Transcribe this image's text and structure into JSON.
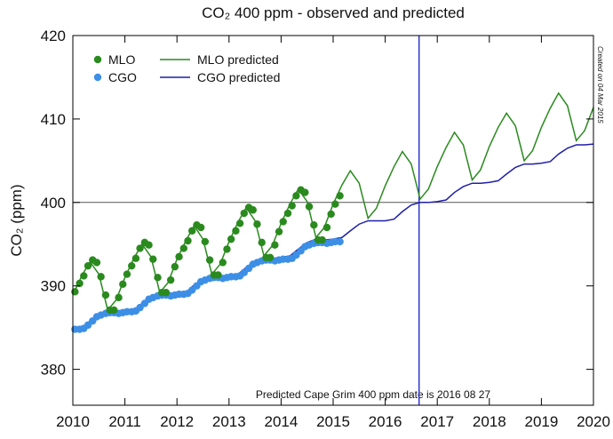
{
  "chart_data": {
    "type": "line",
    "title": "CO₂ 400 ppm - observed and predicted",
    "y_label": "CO₂ (ppm)",
    "annotation": "Predicted Cape Grim 400 ppm date is 2016 08 27",
    "side_note": "Created on 04 Mar 2015",
    "xlim": [
      2010,
      2020
    ],
    "xticks": [
      2010,
      2011,
      2012,
      2013,
      2014,
      2015,
      2016,
      2017,
      2018,
      2019,
      2020
    ],
    "ylim": [
      375.7,
      420
    ],
    "yticks": [
      380,
      390,
      400,
      410,
      420
    ],
    "hline_y": 400,
    "vline_x": 2016.65,
    "series": [
      {
        "name": "MLO",
        "color": "#2a8a1e",
        "style": "markers",
        "x": [
          2010.04,
          2010.13,
          2010.21,
          2010.29,
          2010.38,
          2010.46,
          2010.54,
          2010.63,
          2010.71,
          2010.79,
          2010.88,
          2010.96,
          2011.04,
          2011.13,
          2011.21,
          2011.29,
          2011.38,
          2011.46,
          2011.54,
          2011.63,
          2011.71,
          2011.79,
          2011.88,
          2011.96,
          2012.04,
          2012.13,
          2012.21,
          2012.29,
          2012.38,
          2012.46,
          2012.54,
          2012.63,
          2012.71,
          2012.79,
          2012.88,
          2012.96,
          2013.04,
          2013.13,
          2013.21,
          2013.29,
          2013.38,
          2013.46,
          2013.54,
          2013.63,
          2013.71,
          2013.79,
          2013.88,
          2013.96,
          2014.04,
          2014.13,
          2014.21,
          2014.29,
          2014.38,
          2014.46,
          2014.54,
          2014.63,
          2014.71,
          2014.79,
          2014.88,
          2014.96,
          2015.04,
          2015.13
        ],
        "values": [
          389.3,
          390.3,
          391.2,
          392.4,
          393.1,
          392.8,
          391.1,
          388.9,
          387.1,
          387.1,
          388.6,
          390.2,
          391.4,
          392.4,
          393.3,
          394.5,
          395.2,
          394.9,
          393.2,
          391.0,
          389.2,
          389.2,
          390.7,
          392.3,
          393.5,
          394.5,
          395.4,
          396.6,
          397.3,
          397.0,
          395.3,
          393.1,
          391.3,
          391.3,
          392.8,
          394.4,
          395.6,
          396.6,
          397.5,
          398.7,
          399.4,
          399.1,
          397.4,
          395.2,
          393.4,
          393.4,
          394.9,
          396.5,
          397.7,
          398.7,
          399.6,
          400.8,
          401.5,
          401.2,
          399.5,
          397.3,
          395.5,
          395.5,
          397.0,
          398.6,
          399.8,
          400.8
        ]
      },
      {
        "name": "CGO",
        "color": "#3d8fe6",
        "style": "markers",
        "x": [
          2010.04,
          2010.13,
          2010.21,
          2010.29,
          2010.38,
          2010.46,
          2010.54,
          2010.63,
          2010.71,
          2010.79,
          2010.88,
          2010.96,
          2011.04,
          2011.13,
          2011.21,
          2011.29,
          2011.38,
          2011.46,
          2011.54,
          2011.63,
          2011.71,
          2011.79,
          2011.88,
          2011.96,
          2012.04,
          2012.13,
          2012.21,
          2012.29,
          2012.38,
          2012.46,
          2012.54,
          2012.63,
          2012.71,
          2012.79,
          2012.88,
          2012.96,
          2013.04,
          2013.13,
          2013.21,
          2013.29,
          2013.38,
          2013.46,
          2013.54,
          2013.63,
          2013.71,
          2013.79,
          2013.88,
          2013.96,
          2014.04,
          2014.13,
          2014.21,
          2014.29,
          2014.38,
          2014.46,
          2014.54,
          2014.63,
          2014.71,
          2014.79,
          2014.88,
          2014.96,
          2015.04,
          2015.13
        ],
        "values": [
          384.8,
          384.8,
          384.9,
          385.3,
          385.8,
          386.3,
          386.5,
          386.7,
          386.8,
          386.8,
          386.7,
          386.8,
          386.9,
          386.9,
          387.0,
          387.4,
          387.9,
          388.4,
          388.6,
          388.8,
          388.9,
          388.9,
          388.8,
          388.9,
          389.0,
          389.0,
          389.1,
          389.5,
          390.0,
          390.5,
          390.7,
          390.9,
          391.0,
          391.0,
          390.9,
          391.0,
          391.1,
          391.1,
          391.2,
          391.6,
          392.1,
          392.6,
          392.8,
          393.0,
          393.1,
          393.1,
          393.0,
          393.1,
          393.2,
          393.2,
          393.3,
          393.7,
          394.2,
          394.7,
          394.9,
          395.1,
          395.2,
          395.2,
          395.1,
          395.2,
          395.3,
          395.3
        ]
      },
      {
        "name": "MLO predicted",
        "color": "#2a8a1e",
        "style": "line",
        "x": [
          2010,
          2010.17,
          2010.33,
          2010.5,
          2010.67,
          2010.83,
          2011,
          2011.17,
          2011.33,
          2011.5,
          2011.67,
          2011.83,
          2012,
          2012.17,
          2012.33,
          2012.5,
          2012.67,
          2012.83,
          2013,
          2013.17,
          2013.33,
          2013.5,
          2013.67,
          2013.83,
          2014,
          2014.17,
          2014.33,
          2014.5,
          2014.67,
          2014.83,
          2015,
          2015.17,
          2015.33,
          2015.5,
          2015.67,
          2015.83,
          2016,
          2016.17,
          2016.33,
          2016.5,
          2016.67,
          2016.83,
          2017,
          2017.17,
          2017.33,
          2017.5,
          2017.67,
          2017.83,
          2018,
          2018.17,
          2018.33,
          2018.5,
          2018.67,
          2018.83,
          2019,
          2019.17,
          2019.33,
          2019.5,
          2019.67,
          2019.83,
          2020
        ],
        "values": [
          388.9,
          391.2,
          392.9,
          391.4,
          387.1,
          388.3,
          391.0,
          393.3,
          395.0,
          393.5,
          389.2,
          390.4,
          393.2,
          395.4,
          397.2,
          395.6,
          391.4,
          392.6,
          395.3,
          397.6,
          399.4,
          397.8,
          393.6,
          394.8,
          397.5,
          399.8,
          401.6,
          400.1,
          395.8,
          397.0,
          399.8,
          402.1,
          403.8,
          402.3,
          398.1,
          399.3,
          402.0,
          404.3,
          406.1,
          404.6,
          400.4,
          401.6,
          404.3,
          406.6,
          408.4,
          406.9,
          402.7,
          403.9,
          406.7,
          409.0,
          410.7,
          409.2,
          405.0,
          406.2,
          409.0,
          411.3,
          413.1,
          411.6,
          407.4,
          408.6,
          411.4
        ]
      },
      {
        "name": "CGO predicted",
        "color": "#1f1fa8",
        "style": "line",
        "x": [
          2010,
          2010.17,
          2010.33,
          2010.5,
          2010.67,
          2010.83,
          2011,
          2011.17,
          2011.33,
          2011.5,
          2011.67,
          2011.83,
          2012,
          2012.17,
          2012.33,
          2012.5,
          2012.67,
          2012.83,
          2013,
          2013.17,
          2013.33,
          2013.5,
          2013.67,
          2013.83,
          2014,
          2014.17,
          2014.33,
          2014.5,
          2014.67,
          2014.83,
          2015,
          2015.17,
          2015.33,
          2015.5,
          2015.67,
          2015.83,
          2016,
          2016.17,
          2016.33,
          2016.5,
          2016.67,
          2016.83,
          2017,
          2017.17,
          2017.33,
          2017.5,
          2017.67,
          2017.83,
          2018,
          2018.17,
          2018.33,
          2018.5,
          2018.67,
          2018.83,
          2019,
          2019.17,
          2019.33,
          2019.5,
          2019.67,
          2019.83,
          2020
        ],
        "values": [
          384.8,
          385.0,
          385.8,
          386.6,
          386.9,
          386.9,
          386.9,
          387.1,
          387.9,
          388.7,
          389.0,
          389.0,
          389.1,
          389.2,
          390.1,
          390.8,
          391.2,
          391.2,
          391.2,
          391.4,
          392.2,
          393.0,
          393.4,
          393.3,
          393.4,
          393.6,
          394.4,
          395.2,
          395.6,
          395.5,
          395.6,
          395.8,
          396.6,
          397.4,
          397.8,
          397.8,
          397.8,
          398.0,
          398.9,
          399.7,
          400.0,
          400.0,
          400.1,
          400.3,
          401.2,
          401.9,
          402.3,
          402.3,
          402.4,
          402.6,
          403.4,
          404.2,
          404.6,
          404.6,
          404.7,
          404.9,
          405.8,
          406.5,
          406.9,
          406.9,
          407.0
        ]
      }
    ]
  }
}
